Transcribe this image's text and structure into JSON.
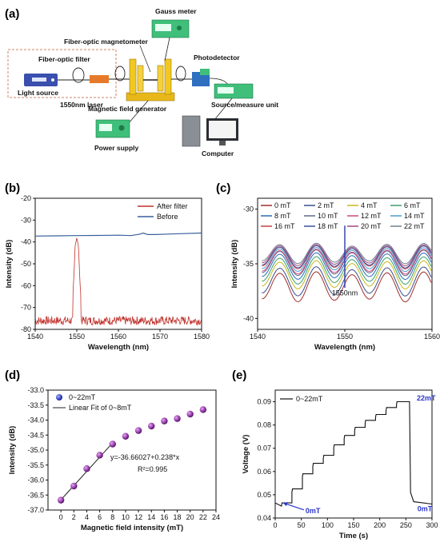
{
  "panels": {
    "a": "(a)",
    "b": "(b)",
    "c": "(c)",
    "d": "(d)",
    "e": "(e)"
  },
  "setup": {
    "gauss_meter": "Gauss meter",
    "fiber_optic_magnetometer": "Fiber-optic magnetometer",
    "fiber_optic_filter": "Fiber-optic filter",
    "photodetector": "Photodetector",
    "light_source": "Light source",
    "laser": "1550nm laser",
    "magnetic_field_generator": "Magnetic field generator",
    "source_measure_unit": "Source/measure unit",
    "power_supply": "Power supply",
    "computer": "Computer"
  },
  "colors": {
    "after_filter": "#c0302a",
    "before": "#3a5f9c",
    "blue_annot": "#2a36c8",
    "magnet": "#e8b81a",
    "instrument": "#3fbf7a"
  },
  "chart_data": [
    {
      "id": "b",
      "type": "line",
      "xlabel": "Wavelength (nm)",
      "ylabel": "Intensity (dB)",
      "xlim": [
        1540,
        1580
      ],
      "ylim": [
        -80,
        -20
      ],
      "xticks": [
        1540,
        1550,
        1560,
        1570,
        1580
      ],
      "yticks": [
        -80,
        -70,
        -60,
        -50,
        -40,
        -30,
        -20
      ],
      "legend": "top-right",
      "series": [
        {
          "name": "After filter",
          "x": [
            1540,
            1545,
            1548.5,
            1549.2,
            1549.6,
            1550,
            1550.4,
            1550.8,
            1551.5,
            1555,
            1580
          ],
          "y": [
            -78,
            -78,
            -77,
            -60,
            -42,
            -38,
            -42,
            -60,
            -77,
            -78,
            -78
          ]
        },
        {
          "name": "Before",
          "x": [
            1540,
            1545,
            1550,
            1555,
            1560,
            1563,
            1565,
            1566,
            1567,
            1569,
            1572,
            1575,
            1580
          ],
          "y": [
            -37.3,
            -37.2,
            -37.1,
            -37,
            -36.9,
            -37.1,
            -36.5,
            -35.9,
            -36.6,
            -36.6,
            -36.4,
            -36.2,
            -35.9
          ]
        }
      ]
    },
    {
      "id": "c",
      "type": "line",
      "xlabel": "Wavelength (nm)",
      "ylabel": "Intensity (dB)",
      "xlim": [
        1540,
        1560
      ],
      "ylim": [
        -41,
        -29
      ],
      "xticks": [
        1540,
        1550,
        1560
      ],
      "yticks": [
        -40,
        -35,
        -30
      ],
      "annotation": "1550nm",
      "legend": "top",
      "series": [
        {
          "name": "0 mT",
          "color": "#a0302a",
          "offset": -36.7
        },
        {
          "name": "2 mT",
          "color": "#3a4f8c",
          "offset": -36.2
        },
        {
          "name": "4 mT",
          "color": "#c8b81e",
          "offset": -35.6
        },
        {
          "name": "6 mT",
          "color": "#3aa06a",
          "offset": -35.2
        },
        {
          "name": "8 mT",
          "color": "#2a6ab8",
          "offset": -34.8
        },
        {
          "name": "10 mT",
          "color": "#5a6a8c",
          "offset": -34.5
        },
        {
          "name": "12 mT",
          "color": "#d04878",
          "offset": -34.4
        },
        {
          "name": "14 mT",
          "color": "#4a9ac8",
          "offset": -34.2
        },
        {
          "name": "16 mT",
          "color": "#c84040",
          "offset": -34.0
        },
        {
          "name": "18 mT",
          "color": "#3a50a0",
          "offset": -33.95
        },
        {
          "name": "20 mT",
          "color": "#a04880",
          "offset": -33.8
        },
        {
          "name": "22 mT",
          "color": "#708090",
          "offset": -33.65
        }
      ]
    },
    {
      "id": "d",
      "type": "scatter",
      "xlabel": "Magnetic field intensity (mT)",
      "ylabel": "Intensity (dB)",
      "xlim": [
        -2,
        24
      ],
      "ylim": [
        -37,
        -33
      ],
      "xticks": [
        0,
        2,
        4,
        6,
        8,
        10,
        12,
        14,
        16,
        18,
        20,
        22,
        24
      ],
      "yticks": [
        -37.0,
        -36.5,
        -36.0,
        -35.5,
        -35.0,
        -34.5,
        -34.0,
        -33.5,
        -33.0
      ],
      "legend": "top-left",
      "equation": "y=-36.66027+0.238*x",
      "r2": "R²=0.995",
      "series": [
        {
          "name": "0~22mT",
          "x": [
            0,
            2,
            4,
            6,
            8,
            10,
            12,
            14,
            16,
            18,
            20,
            22
          ],
          "y": [
            -36.67,
            -36.2,
            -35.62,
            -35.17,
            -34.8,
            -34.54,
            -34.35,
            -34.2,
            -34.03,
            -33.95,
            -33.8,
            -33.65
          ]
        },
        {
          "name": "Linear Fit of 0~8mT",
          "x": [
            0,
            8
          ],
          "y": [
            -36.66,
            -34.76
          ]
        }
      ]
    },
    {
      "id": "e",
      "type": "line",
      "xlabel": "Time (s)",
      "ylabel": "Voltage (V)",
      "xlim": [
        0,
        300
      ],
      "ylim": [
        0.04,
        0.095
      ],
      "xticks": [
        0,
        50,
        100,
        150,
        200,
        250,
        300
      ],
      "yticks": [
        0.04,
        0.05,
        0.06,
        0.07,
        0.08,
        0.09
      ],
      "legend": "top-left",
      "annot_start": "0mT",
      "annot_peak": "22mT",
      "annot_end": "0mT",
      "series": [
        {
          "name": "0~22mT",
          "levels": [
            0.0465,
            0.0525,
            0.059,
            0.0635,
            0.067,
            0.0715,
            0.0755,
            0.079,
            0.082,
            0.0845,
            0.0875,
            0.09
          ],
          "step_start": 12,
          "step_width": 20,
          "drop_time": 257,
          "end_level": 0.046
        }
      ]
    }
  ]
}
